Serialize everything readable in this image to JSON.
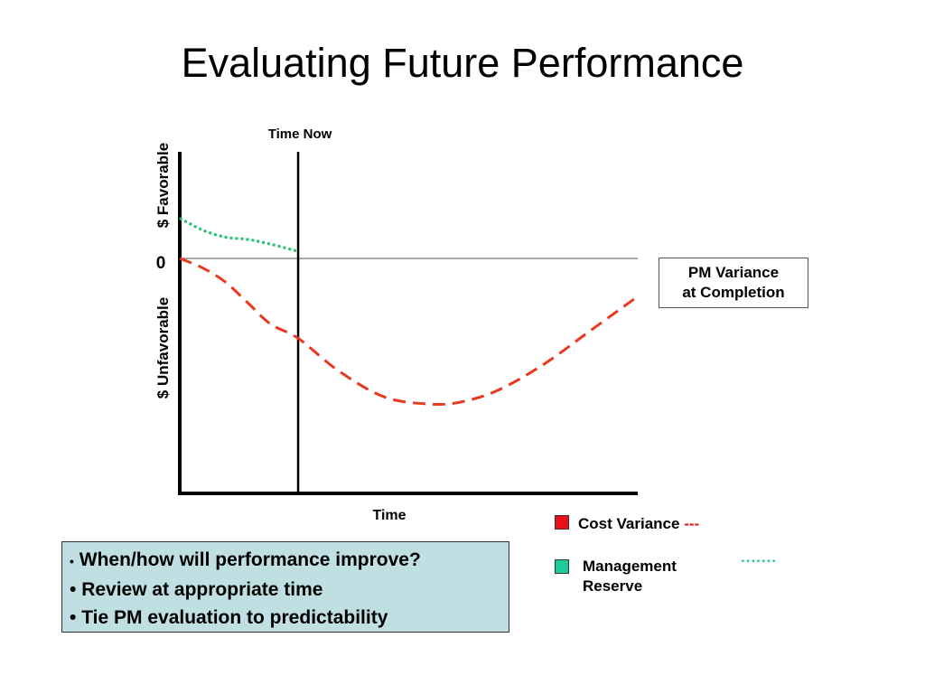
{
  "slide": {
    "title": "Evaluating Future Performance"
  },
  "chart_data": {
    "type": "line",
    "xlabel": "Time",
    "ylabel_top": "$ Favorable",
    "ylabel_bottom": "$ Unfavorable",
    "zero_label": "0",
    "time_now_label": "Time Now",
    "x_range": [
      0,
      100
    ],
    "y_range": [
      -100,
      45
    ],
    "time_now_x": 26,
    "series": [
      {
        "name": "Cost Variance",
        "color": "#e8391f",
        "style": "dashed",
        "x": [
          0,
          5,
          10,
          15,
          20,
          26,
          35,
          45,
          55,
          62,
          70,
          80,
          90,
          100
        ],
        "y": [
          0,
          -4,
          -10,
          -19,
          -28,
          -34,
          -48,
          -59,
          -62,
          -61,
          -56,
          -45,
          -31,
          -17
        ]
      },
      {
        "name": "Management Reserve",
        "color": "#1ec46e",
        "style": "dotted",
        "x": [
          0,
          5,
          10,
          15,
          20,
          26
        ],
        "y": [
          17,
          12,
          9,
          8,
          6,
          3
        ]
      }
    ]
  },
  "annotation": {
    "line1": "PM Variance",
    "line2": "at Completion"
  },
  "legend": {
    "cost_variance": {
      "label": "Cost Variance",
      "line_glyph": "---",
      "color": "#e8101a"
    },
    "management_reserve": {
      "label_line1": "Management",
      "label_line2": "Reserve",
      "line_glyph": ".......",
      "color": "#1ec99a"
    }
  },
  "bullets": [
    "When/how will performance improve?",
    "Review at appropriate time",
    "Tie PM evaluation to predictability"
  ],
  "bullet_char": "•"
}
